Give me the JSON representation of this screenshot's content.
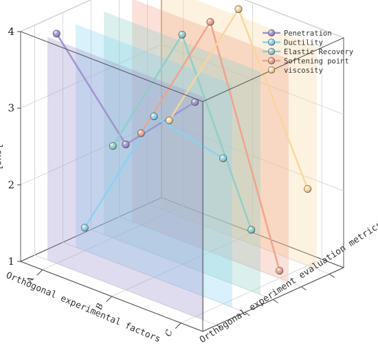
{
  "chart_data": {
    "type": "line",
    "projection": "3d",
    "xlabel": "Orthogonal experimental factors",
    "ylabel": "Orthogonal experiment evaluation metrics",
    "zlabel": "level",
    "x_categories": [
      "A",
      "B",
      "C"
    ],
    "z_ticks": [
      "1",
      "2",
      "3",
      "4"
    ],
    "zlim": [
      1,
      4
    ],
    "legend_position": "top-right",
    "series": [
      {
        "name": "Penetration",
        "color": "#9d93d0",
        "values": [
          4.0,
          2.9,
          3.8
        ]
      },
      {
        "name": "Ductility",
        "color": "#8ad2f0",
        "values": [
          1.3,
          3.1,
          2.9
        ]
      },
      {
        "name": "Elastic Recovery",
        "color": "#8fcfc6",
        "values": [
          2.2,
          4.0,
          1.8
        ]
      },
      {
        "name": "Softening point",
        "color": "#f0a28a",
        "values": [
          2.2,
          4.0,
          1.1
        ]
      },
      {
        "name": "viscosity",
        "color": "#f8d69a",
        "values": [
          2.2,
          4.0,
          2.0
        ]
      }
    ]
  }
}
